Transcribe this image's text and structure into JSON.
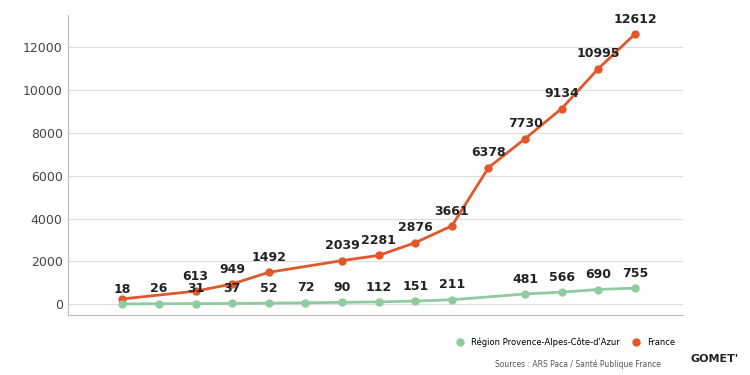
{
  "chart_data": {
    "type": "line",
    "series": [
      {
        "name": "France",
        "color": "#e1572b",
        "marker": "o",
        "line_style": "solid",
        "x": [
          0,
          2,
          3,
          4,
          6,
          7,
          8,
          9,
          10,
          11,
          12,
          13,
          14
        ],
        "values": [
          250,
          613,
          949,
          1492,
          2039,
          2281,
          2876,
          3661,
          6378,
          7730,
          9134,
          10995,
          12612
        ],
        "value_labels": [
          null,
          "613",
          "949",
          "1492",
          "2039",
          "2281",
          "2876",
          "3661",
          "6378",
          "7730",
          "9134",
          "10995",
          "12612"
        ]
      },
      {
        "name": "Région Provence-Alpes-Côte-d'Azur",
        "color": "#8fcaa0",
        "marker": "o",
        "line_style": "solid",
        "x": [
          0,
          1,
          2,
          3,
          4,
          5,
          6,
          7,
          8,
          9,
          11,
          12,
          13,
          14
        ],
        "values": [
          18,
          26,
          31,
          37,
          52,
          72,
          90,
          112,
          151,
          211,
          481,
          566,
          690,
          755
        ],
        "value_labels": [
          "18",
          "26",
          "31",
          "37",
          "52",
          "72",
          "90",
          "112",
          "151",
          "211",
          "481",
          "566",
          "690",
          "755"
        ]
      }
    ],
    "xlim": [
      -1.5,
      15.3
    ],
    "ylim": [
      -500,
      13500
    ],
    "yticks": [
      0,
      2000,
      4000,
      6000,
      8000,
      10000,
      12000
    ],
    "grid": true,
    "legend": "lower right",
    "data_labels": true,
    "tick_labels": "y",
    "annotations": [
      "Sources : ARS Paca / Santé Publique France",
      "GOMET'"
    ]
  }
}
